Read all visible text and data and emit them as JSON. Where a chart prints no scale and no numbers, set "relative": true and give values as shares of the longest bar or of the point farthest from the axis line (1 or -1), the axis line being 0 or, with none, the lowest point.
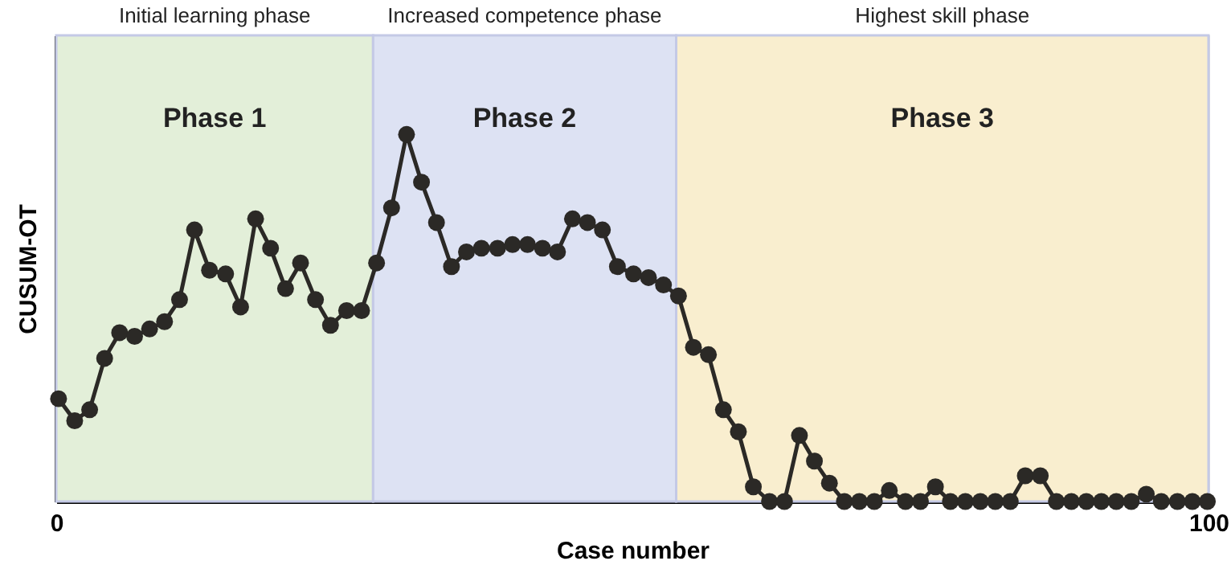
{
  "chart_data": {
    "type": "line",
    "relative": true,
    "xlabel": "Case number",
    "ylabel": "CUSUM-OT",
    "xlim": [
      0,
      100
    ],
    "xticks": [
      0,
      100
    ],
    "marker": "circle",
    "line_style": "solid",
    "x": [
      0.2,
      1.6,
      2.9,
      4.2,
      5.5,
      6.8,
      8.1,
      9.4,
      10.7,
      12.0,
      13.3,
      14.7,
      16.0,
      17.3,
      18.6,
      19.9,
      21.2,
      22.5,
      23.8,
      25.2,
      26.5,
      27.8,
      29.1,
      30.4,
      31.7,
      33.0,
      34.3,
      35.6,
      36.9,
      38.3,
      39.6,
      40.9,
      42.2,
      43.5,
      44.8,
      46.1,
      47.4,
      48.7,
      50.1,
      51.4,
      52.7,
      54.0,
      55.3,
      56.6,
      57.9,
      59.2,
      60.5,
      61.9,
      63.2,
      64.5,
      65.8,
      67.1,
      68.4,
      69.7,
      71.0,
      72.3,
      73.7,
      75.0,
      76.3,
      77.6,
      78.9,
      80.2,
      81.5,
      82.8,
      84.1,
      85.4,
      86.8,
      88.1,
      89.4,
      90.7,
      92.0,
      93.3,
      94.6,
      95.9,
      97.3,
      98.6,
      99.9
    ],
    "series": [
      {
        "color": "#2b2926",
        "values": [
          0.28,
          0.22,
          0.25,
          0.39,
          0.46,
          0.45,
          0.47,
          0.49,
          0.55,
          0.74,
          0.63,
          0.62,
          0.53,
          0.77,
          0.69,
          0.58,
          0.65,
          0.55,
          0.48,
          0.52,
          0.52,
          0.65,
          0.8,
          1,
          0.87,
          0.76,
          0.64,
          0.68,
          0.69,
          0.69,
          0.7,
          0.7,
          0.69,
          0.68,
          0.77,
          0.76,
          0.74,
          0.64,
          0.62,
          0.61,
          0.59,
          0.56,
          0.42,
          0.4,
          0.25,
          0.19,
          0.04,
          0,
          0,
          0.18,
          0.11,
          0.05,
          0,
          0,
          0,
          0.03,
          0,
          0,
          0.04,
          0,
          0,
          0,
          0,
          0,
          0.07,
          0.07,
          0,
          0,
          0,
          0,
          0,
          0,
          0.02,
          0,
          0,
          0,
          0
        ]
      }
    ],
    "bands": [
      {
        "axis": "x",
        "from": 0,
        "to": 27.5,
        "label": "Phase 1",
        "color": "#e3efd9"
      },
      {
        "axis": "x",
        "from": 27.5,
        "to": 53.8,
        "label": "Phase 2",
        "color": "#dde2f3"
      },
      {
        "axis": "x",
        "from": 53.8,
        "to": 100,
        "label": "Phase 3",
        "color": "#f9eecf"
      }
    ],
    "annotations": [
      "Initial learning phase",
      "Increased competence phase",
      "Highest skill phase"
    ]
  }
}
